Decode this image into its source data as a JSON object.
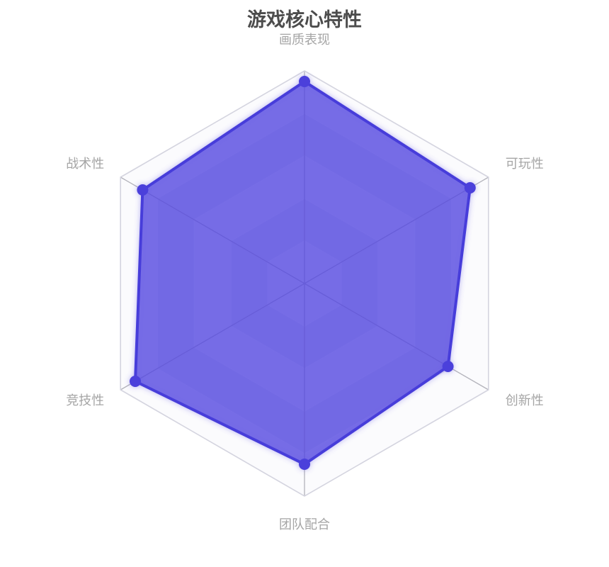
{
  "chart_data": {
    "type": "radar",
    "title": "游戏核心特性",
    "shape": "hexagon",
    "levels": 5,
    "max": 100,
    "grid": true,
    "legend_visible": false,
    "indicators": [
      {
        "label": "画质表现",
        "max": 100
      },
      {
        "label": "可玩性",
        "max": 100
      },
      {
        "label": "创新性",
        "max": 100
      },
      {
        "label": "团队配合",
        "max": 100
      },
      {
        "label": "竞技性",
        "max": 100
      },
      {
        "label": "战术性",
        "max": 100
      }
    ],
    "series": [
      {
        "values": [
          95,
          90,
          78,
          85,
          92,
          88
        ]
      }
    ],
    "style": {
      "background": "#ffffff",
      "title_color": "#4c4c4c",
      "axis_label_color": "#a5a5a5",
      "split_area_light": "#fbfbfd",
      "split_area_dark": "#e9e9f2",
      "grid_line_color": "rgba(255,255,255,0.8)",
      "outer_border_color": "#d4d4df",
      "axis_line_color": "#b3b3bb",
      "series_fill": "rgba(83,70,224,0.7)",
      "series_line": "#463cda",
      "series_dot": "#4b40db",
      "glow_color": "#5a50e1"
    }
  }
}
